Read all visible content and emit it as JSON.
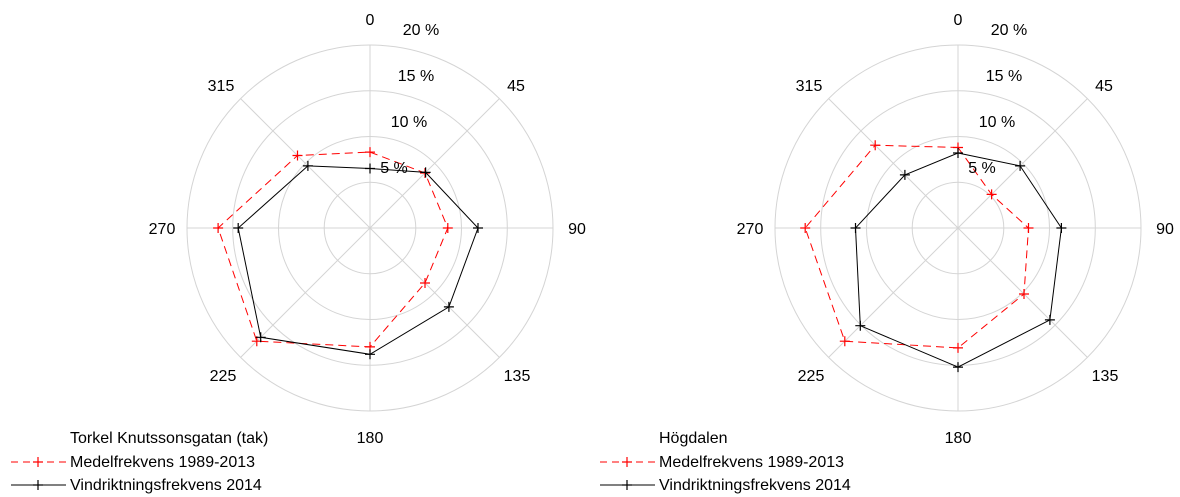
{
  "chart_data": [
    {
      "type": "radar",
      "title": "",
      "directions": [
        0,
        45,
        90,
        135,
        180,
        225,
        270,
        315
      ],
      "direction_labels": [
        "0",
        "45",
        "90",
        "135",
        "180",
        "225",
        "270",
        "315"
      ],
      "rlim": [
        0,
        20
      ],
      "ring_labels": [
        "5 %",
        "10 %",
        "15 %",
        "20 %"
      ],
      "grid": true,
      "legend_position": "bottom-left",
      "legend_title": "Torkel Knutssonsgatan (tak)",
      "series": [
        {
          "name": "Medelfrekvens 1989-2013",
          "color": "#ff0000",
          "style": "dashed",
          "values": [
            8.3,
            8.5,
            8.5,
            8.5,
            13.0,
            17.5,
            16.6,
            11.2
          ]
        },
        {
          "name": "Vindriktningsfrekvens 2014",
          "color": "#000000",
          "style": "solid",
          "values": [
            6.5,
            8.6,
            11.8,
            12.2,
            13.8,
            16.9,
            14.4,
            9.6
          ]
        }
      ]
    },
    {
      "type": "radar",
      "title": "",
      "directions": [
        0,
        45,
        90,
        135,
        180,
        225,
        270,
        315
      ],
      "direction_labels": [
        "0",
        "45",
        "90",
        "135",
        "180",
        "225",
        "270",
        "315"
      ],
      "rlim": [
        0,
        20
      ],
      "ring_labels": [
        "5 %",
        "10 %",
        "15 %",
        "20 %"
      ],
      "grid": true,
      "legend_position": "bottom-left",
      "legend_title": "Högdalen",
      "series": [
        {
          "name": "Medelfrekvens 1989-2013",
          "color": "#ff0000",
          "style": "dashed",
          "values": [
            8.8,
            5.2,
            7.7,
            10.2,
            13.1,
            17.5,
            16.7,
            12.8
          ]
        },
        {
          "name": "Vindriktningsfrekvens 2014",
          "color": "#000000",
          "style": "solid",
          "values": [
            8.2,
            9.6,
            11.3,
            14.2,
            15.2,
            15.1,
            11.2,
            8.2
          ]
        }
      ]
    }
  ]
}
